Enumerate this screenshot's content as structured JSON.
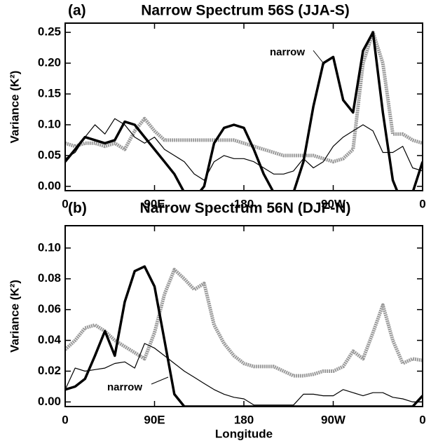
{
  "chart_data": [
    {
      "type": "line",
      "panel_label": "(a)",
      "title": "Narrow Spectrum 56S  (JJA-S)",
      "ylabel": "Variance (K²)",
      "annotation": "narrow",
      "x": [
        0,
        10,
        20,
        30,
        40,
        50,
        60,
        70,
        80,
        90,
        100,
        110,
        120,
        130,
        140,
        150,
        160,
        170,
        180,
        190,
        200,
        210,
        220,
        230,
        240,
        250,
        260,
        270,
        280,
        290,
        300,
        310,
        320,
        330,
        340,
        350,
        360
      ],
      "xlim": [
        0,
        360
      ],
      "xticks": [
        0,
        {
          "value": 90,
          "label": "90E"
        },
        180,
        {
          "value": 270,
          "label": "90W"
        },
        {
          "value": 360,
          "label": "0"
        }
      ],
      "ylim": [
        -0.007,
        0.265
      ],
      "yticks": [
        {
          "value": 0,
          "label": "0.00"
        },
        0.05,
        {
          "value": 0.1,
          "label": "0.10"
        },
        0.15,
        {
          "value": 0.2,
          "label": "0.20"
        },
        0.25
      ],
      "series": [
        {
          "color": "#999999",
          "linewidth": 5,
          "values": [
            0.07,
            0.065,
            0.07,
            0.07,
            0.065,
            0.07,
            0.06,
            0.09,
            0.11,
            0.09,
            0.075,
            0.075,
            0.075,
            0.075,
            0.075,
            0.075,
            0.075,
            0.075,
            0.07,
            0.065,
            0.06,
            0.055,
            0.05,
            0.05,
            0.05,
            0.05,
            0.045,
            0.04,
            0.045,
            0.06,
            0.2,
            0.25,
            0.2,
            0.085,
            0.085,
            0.075,
            0.07
          ]
        },
        {
          "color": "#000000",
          "linewidth": 1.2,
          "values": [
            0.045,
            0.055,
            0.08,
            0.1,
            0.085,
            0.11,
            0.1,
            0.08,
            0.07,
            0.08,
            0.06,
            0.05,
            0.04,
            0.02,
            0.01,
            0.04,
            0.05,
            0.045,
            0.045,
            0.04,
            0.03,
            0.02,
            0.02,
            0.025,
            0.045,
            0.03,
            0.04,
            0.065,
            0.08,
            0.09,
            0.1,
            0.09,
            0.055,
            0.055,
            0.065,
            0.03,
            0.025
          ]
        },
        {
          "color": "#000000",
          "linewidth": 3.5,
          "values": [
            0.04,
            0.06,
            0.08,
            0.075,
            0.07,
            0.075,
            0.105,
            0.1,
            0.08,
            0.06,
            0.04,
            0.02,
            -0.01,
            -0.02,
            0.0,
            0.07,
            0.095,
            0.1,
            0.095,
            0.06,
            0.02,
            -0.01,
            -0.03,
            -0.01,
            0.04,
            0.13,
            0.2,
            0.21,
            0.14,
            0.12,
            0.22,
            0.25,
            0.12,
            0.01,
            -0.03,
            -0.01,
            0.04
          ]
        }
      ]
    },
    {
      "type": "line",
      "panel_label": "(b)",
      "title": "Narrow Spectrum 56N  (DJF-N)",
      "ylabel": "Variance (K²)",
      "xlabel": "Longitude",
      "annotation": "narrow",
      "x": [
        0,
        10,
        20,
        30,
        40,
        50,
        60,
        70,
        80,
        90,
        100,
        110,
        120,
        130,
        140,
        150,
        160,
        170,
        180,
        190,
        200,
        210,
        220,
        230,
        240,
        250,
        260,
        270,
        280,
        290,
        300,
        310,
        320,
        330,
        340,
        350,
        360
      ],
      "xlim": [
        0,
        360
      ],
      "xticks": [
        0,
        {
          "value": 90,
          "label": "90E"
        },
        180,
        {
          "value": 270,
          "label": "90W"
        },
        {
          "value": 360,
          "label": "0"
        }
      ],
      "ylim": [
        -0.003,
        0.1145
      ],
      "yticks": [
        {
          "value": 0,
          "label": "0.00"
        },
        0.02,
        0.04,
        0.06,
        0.08,
        {
          "value": 0.1,
          "label": "0.10"
        }
      ],
      "series": [
        {
          "color": "#999999",
          "linewidth": 5,
          "values": [
            0.034,
            0.04,
            0.048,
            0.05,
            0.046,
            0.04,
            0.036,
            0.032,
            0.028,
            0.045,
            0.07,
            0.086,
            0.08,
            0.073,
            0.077,
            0.05,
            0.038,
            0.03,
            0.025,
            0.023,
            0.023,
            0.023,
            0.02,
            0.017,
            0.017,
            0.018,
            0.02,
            0.02,
            0.023,
            0.033,
            0.028,
            0.045,
            0.063,
            0.04,
            0.025,
            0.028,
            0.027
          ]
        },
        {
          "color": "#000000",
          "linewidth": 1.2,
          "values": [
            0.008,
            0.022,
            0.02,
            0.021,
            0.022,
            0.025,
            0.026,
            0.022,
            0.038,
            0.035,
            0.03,
            0.025,
            0.02,
            0.016,
            0.012,
            0.008,
            0.005,
            0.003,
            0.002,
            -0.002,
            -0.002,
            -0.002,
            -0.002,
            -0.002,
            0.005,
            0.005,
            0.004,
            0.004,
            0.008,
            0.006,
            0.004,
            0.006,
            0.006,
            0.003,
            0.002,
            0.0,
            0.0
          ]
        },
        {
          "color": "#000000",
          "linewidth": 3.5,
          "values": [
            0.008,
            0.01,
            0.015,
            0.03,
            0.046,
            0.03,
            0.065,
            0.085,
            0.088,
            0.075,
            0.04,
            0.005,
            -0.003,
            -0.003,
            -0.003,
            -0.003,
            -0.003,
            -0.003,
            -0.003,
            -0.003,
            -0.003,
            -0.003,
            -0.003,
            -0.003,
            -0.003,
            -0.003,
            -0.003,
            -0.003,
            -0.003,
            -0.003,
            -0.003,
            -0.003,
            -0.003,
            -0.003,
            -0.003,
            -0.003,
            0.004
          ]
        }
      ]
    }
  ]
}
